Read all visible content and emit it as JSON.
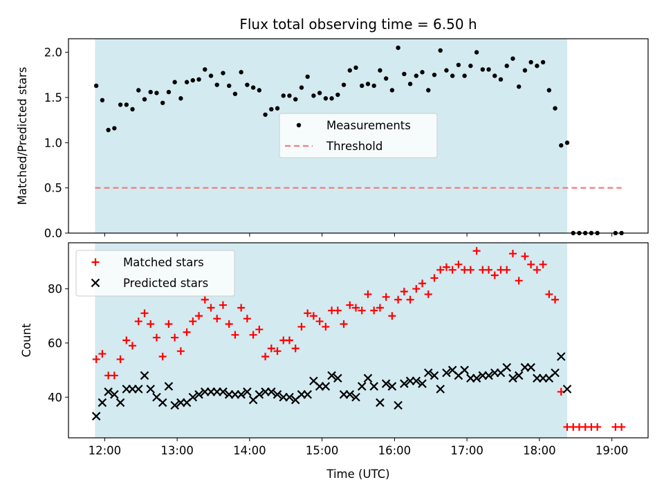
{
  "chart_data": [
    {
      "type": "scatter",
      "title": "Flux total observing time = 6.50 h",
      "xlabel": "",
      "ylabel": "Matched/Predicted stars",
      "xlim": [
        "11:30",
        "19:30"
      ],
      "ylim": [
        0,
        2.15
      ],
      "y_ticks": [
        "0.0",
        "0.5",
        "1.0",
        "1.5",
        "2.0"
      ],
      "observing_window": [
        "11:52",
        "18:23"
      ],
      "window_color": "#d3eaf0",
      "legend_position": "center",
      "series": [
        {
          "name": "Measurements",
          "color": "#000000",
          "marker": "dot",
          "x": [
            "11:53",
            "11:58",
            "12:03",
            "12:08",
            "12:13",
            "12:18",
            "12:23",
            "12:28",
            "12:33",
            "12:38",
            "12:43",
            "12:48",
            "12:53",
            "12:58",
            "13:03",
            "13:08",
            "13:13",
            "13:18",
            "13:23",
            "13:28",
            "13:33",
            "13:38",
            "13:43",
            "13:48",
            "13:53",
            "13:58",
            "14:03",
            "14:08",
            "14:13",
            "14:18",
            "14:23",
            "14:28",
            "14:33",
            "14:38",
            "14:43",
            "14:48",
            "14:53",
            "14:58",
            "15:03",
            "15:08",
            "15:13",
            "15:18",
            "15:23",
            "15:28",
            "15:33",
            "15:38",
            "15:43",
            "15:48",
            "15:53",
            "15:58",
            "16:03",
            "16:08",
            "16:13",
            "16:18",
            "16:23",
            "16:28",
            "16:33",
            "16:38",
            "16:43",
            "16:48",
            "16:53",
            "16:58",
            "17:03",
            "17:08",
            "17:13",
            "17:18",
            "17:23",
            "17:28",
            "17:33",
            "17:38",
            "17:43",
            "17:48",
            "17:53",
            "17:58",
            "18:03",
            "18:08",
            "18:13",
            "18:18",
            "18:23",
            "18:28",
            "18:33",
            "18:38",
            "18:43",
            "18:48",
            "19:03",
            "19:08"
          ],
          "y": [
            1.63,
            1.47,
            1.14,
            1.16,
            1.42,
            1.42,
            1.37,
            1.58,
            1.48,
            1.56,
            1.55,
            1.44,
            1.56,
            1.67,
            1.49,
            1.67,
            1.69,
            1.7,
            1.81,
            1.74,
            1.64,
            1.77,
            1.63,
            1.54,
            1.78,
            1.64,
            1.61,
            1.58,
            1.31,
            1.37,
            1.38,
            1.52,
            1.52,
            1.48,
            1.61,
            1.73,
            1.52,
            1.55,
            1.49,
            1.49,
            1.53,
            1.64,
            1.8,
            1.83,
            1.63,
            1.65,
            1.63,
            1.8,
            1.71,
            1.58,
            2.05,
            1.76,
            1.65,
            1.74,
            1.78,
            1.58,
            1.75,
            2.02,
            1.8,
            1.74,
            1.86,
            1.74,
            1.85,
            2.0,
            1.81,
            1.81,
            1.74,
            1.7,
            1.85,
            1.93,
            1.62,
            1.8,
            1.89,
            1.85,
            1.89,
            1.58,
            1.38,
            0.97,
            1.0,
            0.0,
            0.0,
            0.0,
            0.0,
            0.0,
            0.0,
            0.0
          ]
        },
        {
          "name": "Threshold",
          "color": "#f47a7a",
          "style": "dashed",
          "x": [
            "11:52",
            "19:08"
          ],
          "y": [
            0.5,
            0.5
          ]
        }
      ]
    },
    {
      "type": "scatter",
      "title": "",
      "xlabel": "Time (UTC)",
      "ylabel": "Count",
      "xlim": [
        "11:30",
        "19:30"
      ],
      "ylim": [
        25,
        97
      ],
      "x_ticks": [
        "12:00",
        "13:00",
        "14:00",
        "15:00",
        "16:00",
        "17:00",
        "18:00",
        "19:00"
      ],
      "y_ticks": [
        "40",
        "60",
        "80"
      ],
      "observing_window": [
        "11:52",
        "18:23"
      ],
      "window_color": "#d3eaf0",
      "legend_position": "upper left",
      "series": [
        {
          "name": "Matched stars",
          "color": "#ff0000",
          "marker": "plus",
          "x": [
            "11:53",
            "11:58",
            "12:03",
            "12:08",
            "12:13",
            "12:18",
            "12:23",
            "12:28",
            "12:33",
            "12:38",
            "12:43",
            "12:48",
            "12:53",
            "12:58",
            "13:03",
            "13:08",
            "13:13",
            "13:18",
            "13:23",
            "13:28",
            "13:33",
            "13:38",
            "13:43",
            "13:48",
            "13:53",
            "13:58",
            "14:03",
            "14:08",
            "14:13",
            "14:18",
            "14:23",
            "14:28",
            "14:33",
            "14:38",
            "14:43",
            "14:48",
            "14:53",
            "14:58",
            "15:03",
            "15:08",
            "15:13",
            "15:18",
            "15:23",
            "15:28",
            "15:33",
            "15:38",
            "15:43",
            "15:48",
            "15:53",
            "15:58",
            "16:03",
            "16:08",
            "16:13",
            "16:18",
            "16:23",
            "16:28",
            "16:33",
            "16:38",
            "16:43",
            "16:48",
            "16:53",
            "16:58",
            "17:03",
            "17:08",
            "17:13",
            "17:18",
            "17:23",
            "17:28",
            "17:33",
            "17:38",
            "17:43",
            "17:48",
            "17:53",
            "17:58",
            "18:03",
            "18:08",
            "18:13",
            "18:18",
            "18:23",
            "18:28",
            "18:33",
            "18:38",
            "18:43",
            "18:48",
            "19:03",
            "19:08"
          ],
          "y": [
            54,
            56,
            48,
            48,
            54,
            61,
            59,
            68,
            71,
            67,
            62,
            55,
            67,
            62,
            57,
            64,
            68,
            70,
            76,
            73,
            69,
            74,
            67,
            63,
            73,
            69,
            63,
            65,
            55,
            58,
            57,
            61,
            61,
            58,
            66,
            71,
            70,
            68,
            66,
            72,
            72,
            67,
            74,
            73,
            72,
            78,
            72,
            73,
            77,
            70,
            76,
            79,
            76,
            80,
            82,
            78,
            84,
            87,
            88,
            87,
            89,
            87,
            87,
            94,
            87,
            87,
            85,
            87,
            87,
            93,
            83,
            92,
            89,
            87,
            89,
            78,
            76,
            42,
            29,
            29,
            29,
            29,
            29,
            29,
            29,
            29
          ]
        },
        {
          "name": "Predicted stars",
          "color": "#000000",
          "marker": "x",
          "x": [
            "11:53",
            "11:58",
            "12:03",
            "12:08",
            "12:13",
            "12:18",
            "12:23",
            "12:28",
            "12:33",
            "12:38",
            "12:43",
            "12:48",
            "12:53",
            "12:58",
            "13:03",
            "13:08",
            "13:13",
            "13:18",
            "13:23",
            "13:28",
            "13:33",
            "13:38",
            "13:43",
            "13:48",
            "13:53",
            "13:58",
            "14:03",
            "14:08",
            "14:13",
            "14:18",
            "14:23",
            "14:28",
            "14:33",
            "14:38",
            "14:43",
            "14:48",
            "14:53",
            "14:58",
            "15:03",
            "15:08",
            "15:13",
            "15:18",
            "15:23",
            "15:28",
            "15:33",
            "15:38",
            "15:43",
            "15:48",
            "15:53",
            "15:58",
            "16:03",
            "16:08",
            "16:13",
            "16:18",
            "16:23",
            "16:28",
            "16:33",
            "16:38",
            "16:43",
            "16:48",
            "16:53",
            "16:58",
            "17:03",
            "17:08",
            "17:13",
            "17:18",
            "17:23",
            "17:28",
            "17:33",
            "17:38",
            "17:43",
            "17:48",
            "17:53",
            "17:58",
            "18:03",
            "18:08",
            "18:13",
            "18:18",
            "18:23"
          ],
          "y": [
            33,
            38,
            42,
            41,
            38,
            43,
            43,
            43,
            48,
            43,
            40,
            38,
            44,
            37,
            38,
            38,
            40,
            41,
            42,
            42,
            42,
            42,
            41,
            41,
            41,
            42,
            39,
            41,
            42,
            42,
            41,
            40,
            40,
            39,
            41,
            41,
            46,
            44,
            44,
            48,
            47,
            41,
            41,
            40,
            44,
            47,
            44,
            38,
            45,
            44,
            37,
            45,
            46,
            46,
            45,
            49,
            48,
            43,
            49,
            50,
            48,
            50,
            47,
            47,
            48,
            48,
            49,
            49,
            51,
            47,
            48,
            51,
            51,
            47,
            47,
            47,
            49,
            55,
            43
          ]
        }
      ]
    }
  ]
}
